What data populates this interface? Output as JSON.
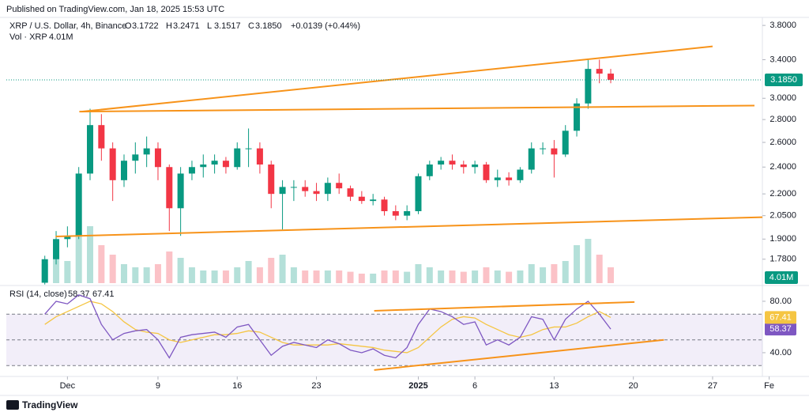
{
  "header": {
    "published": "Published on TradingView.com, Jan 18, 2025 15:53 UTC",
    "symbol": "XRP / U.S. Dollar, 4h, Binance",
    "ohlc": [
      {
        "label": "O",
        "value": "3.1722"
      },
      {
        "label": "H",
        "value": "3.2471"
      },
      {
        "label": "L",
        "value": "3.1517"
      },
      {
        "label": "C",
        "value": "3.1850"
      }
    ],
    "change": "+0.0139 (+0.44%)",
    "vol_label": "Vol · XRP",
    "vol_value": "4.01M"
  },
  "footer": {
    "brand": "TradingView"
  },
  "chart_data": [
    {
      "type": "candlestick",
      "log_scale": true,
      "up_color": "#089981",
      "down_color": "#f23645",
      "trend_color": "#f7931a",
      "x": [
        -2,
        -1,
        0,
        1,
        2,
        3,
        4,
        5,
        6,
        7,
        8,
        9,
        10,
        11,
        12,
        13,
        14,
        15,
        16,
        17,
        18,
        19,
        20,
        21,
        22,
        23,
        24,
        25,
        26,
        27,
        28,
        29,
        30,
        31,
        32,
        33,
        34,
        35,
        36,
        37,
        38,
        39,
        40,
        41,
        42,
        43,
        44,
        45,
        46,
        47,
        48
      ],
      "open": [
        1.65,
        1.78,
        1.9,
        1.92,
        2.35,
        2.75,
        2.55,
        2.3,
        2.45,
        2.5,
        2.55,
        2.4,
        2.1,
        2.35,
        2.4,
        2.42,
        2.45,
        2.4,
        2.55,
        2.55,
        2.42,
        2.2,
        2.25,
        2.25,
        2.22,
        2.2,
        2.28,
        2.24,
        2.18,
        2.15,
        2.16,
        2.08,
        2.05,
        2.08,
        2.33,
        2.42,
        2.45,
        2.42,
        2.4,
        2.42,
        2.3,
        2.32,
        2.3,
        2.38,
        2.55,
        2.55,
        2.5,
        2.7,
        2.95,
        3.3,
        3.25
      ],
      "high": [
        1.8,
        1.95,
        1.98,
        2.4,
        2.9,
        2.85,
        2.6,
        2.5,
        2.6,
        2.65,
        2.6,
        2.42,
        2.4,
        2.45,
        2.5,
        2.5,
        2.48,
        2.6,
        2.72,
        2.6,
        2.45,
        2.3,
        2.3,
        2.3,
        2.28,
        2.32,
        2.35,
        2.26,
        2.22,
        2.2,
        2.18,
        2.12,
        2.12,
        2.35,
        2.45,
        2.48,
        2.5,
        2.45,
        2.45,
        2.44,
        2.38,
        2.36,
        2.4,
        2.6,
        2.6,
        2.62,
        2.75,
        3.0,
        3.4,
        3.4,
        3.3
      ],
      "low": [
        1.64,
        1.75,
        1.85,
        1.9,
        2.3,
        2.45,
        2.15,
        2.25,
        2.35,
        2.4,
        2.3,
        1.95,
        1.92,
        2.3,
        2.32,
        2.35,
        2.35,
        2.38,
        2.4,
        2.35,
        2.1,
        1.96,
        2.15,
        2.18,
        2.15,
        2.15,
        2.2,
        2.15,
        2.13,
        2.12,
        2.05,
        2.02,
        2.02,
        2.06,
        2.3,
        2.38,
        2.38,
        2.35,
        2.35,
        2.28,
        2.25,
        2.26,
        2.28,
        2.35,
        2.5,
        2.32,
        2.48,
        2.65,
        2.9,
        3.15,
        3.15
      ],
      "close": [
        1.78,
        1.9,
        1.92,
        2.35,
        2.75,
        2.55,
        2.3,
        2.45,
        2.5,
        2.55,
        2.4,
        2.1,
        2.35,
        2.4,
        2.42,
        2.45,
        2.4,
        2.55,
        2.55,
        2.42,
        2.2,
        2.25,
        2.25,
        2.22,
        2.2,
        2.28,
        2.24,
        2.18,
        2.15,
        2.16,
        2.08,
        2.05,
        2.08,
        2.33,
        2.42,
        2.45,
        2.42,
        2.4,
        2.42,
        2.3,
        2.32,
        2.3,
        2.38,
        2.55,
        2.55,
        2.5,
        2.7,
        2.95,
        3.3,
        3.25,
        3.185
      ],
      "volume": [
        300,
        450,
        350,
        800,
        900,
        600,
        450,
        300,
        250,
        250,
        300,
        500,
        400,
        250,
        200,
        200,
        200,
        250,
        350,
        250,
        400,
        450,
        250,
        200,
        200,
        200,
        200,
        180,
        150,
        150,
        200,
        200,
        180,
        300,
        250,
        200,
        200,
        180,
        200,
        250,
        200,
        180,
        200,
        300,
        250,
        300,
        350,
        600,
        700,
        450,
        250
      ],
      "volume_lim": [
        0,
        1000
      ],
      "xlim": [
        -5.4,
        61.4
      ],
      "xticks": [
        {
          "value": 0,
          "label": "Dec"
        },
        {
          "value": 8,
          "label": "9"
        },
        {
          "value": 15,
          "label": "16"
        },
        {
          "value": 22,
          "label": "23"
        },
        {
          "value": 31,
          "label": "2025"
        },
        {
          "value": 36,
          "label": "6"
        },
        {
          "value": 43,
          "label": "13"
        },
        {
          "value": 50,
          "label": "20"
        },
        {
          "value": 57,
          "label": "27"
        },
        {
          "value": 62,
          "label": "Fe"
        }
      ],
      "ylim": [
        1.647,
        3.9
      ],
      "yticks": [
        {
          "value": 3.8,
          "label": "3.8000"
        },
        {
          "value": 3.4,
          "label": "3.4000"
        },
        {
          "value": 3.0,
          "label": "3.0000"
        },
        {
          "value": 2.8,
          "label": "2.8000"
        },
        {
          "value": 2.6,
          "label": "2.6000"
        },
        {
          "value": 2.4,
          "label": "2.4000"
        },
        {
          "value": 2.2,
          "label": "2.2000"
        },
        {
          "value": 2.05,
          "label": "2.0500"
        },
        {
          "value": 1.9,
          "label": "1.9000"
        },
        {
          "value": 1.78,
          "label": "1.7800"
        }
      ],
      "last_price": {
        "value": 3.185,
        "label": "3.1850"
      },
      "trendlines": [
        {
          "x": [
            1.26,
            57.0
          ],
          "y": [
            2.873,
            3.55
          ]
        },
        {
          "x": [
            1.05,
            60.7
          ],
          "y": [
            2.873,
            2.93
          ]
        },
        {
          "x": [
            -1.05,
            61.4
          ],
          "y": [
            1.916,
            2.04
          ]
        }
      ]
    },
    {
      "type": "line",
      "title": "RSI (14, close)",
      "series": [
        {
          "color": "#7e57c2",
          "last": {
            "value": 58.37,
            "label": "58.37"
          },
          "values": [
            70,
            80,
            78,
            85,
            82,
            62,
            50,
            55,
            57,
            58,
            50,
            36,
            52,
            54,
            55,
            56,
            52,
            60,
            62,
            50,
            38,
            45,
            48,
            46,
            44,
            50,
            47,
            42,
            40,
            43,
            38,
            36,
            44,
            62,
            74,
            72,
            68,
            62,
            64,
            46,
            50,
            46,
            52,
            68,
            66,
            50,
            66,
            74,
            80,
            70,
            58.37
          ]
        },
        {
          "color": "#f5c542",
          "last": {
            "value": 67.41,
            "label": "67.41"
          },
          "values": [
            62,
            68,
            72,
            76,
            80,
            78,
            72,
            64,
            58,
            56,
            55,
            50,
            48,
            50,
            52,
            54,
            54,
            55,
            57,
            56,
            52,
            48,
            46,
            46,
            46,
            46,
            47,
            46,
            45,
            44,
            42,
            41,
            40,
            44,
            52,
            60,
            66,
            68,
            67,
            62,
            58,
            54,
            52,
            54,
            58,
            60,
            60,
            63,
            68,
            72,
            67.41
          ]
        }
      ],
      "ylim": [
        25.2,
        89.2
      ],
      "yticks": [
        {
          "value": 80,
          "label": "80.00"
        },
        {
          "value": 40,
          "label": "40.00"
        }
      ],
      "bands": [
        70,
        50,
        30
      ],
      "trendlines": [
        {
          "x": [
            27.1,
            50.1
          ],
          "y": [
            72.6,
            79.4
          ]
        },
        {
          "x": [
            27.1,
            52.7
          ],
          "y": [
            26.5,
            50
          ]
        }
      ]
    }
  ]
}
